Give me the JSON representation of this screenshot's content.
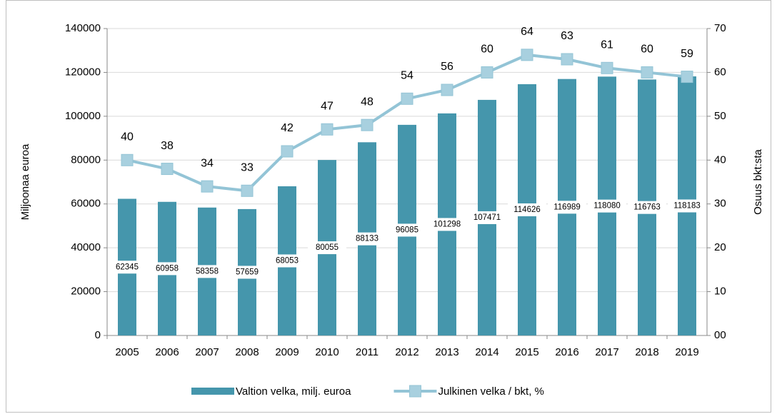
{
  "chart_data": {
    "type": "bar",
    "categories": [
      "2005",
      "2006",
      "2007",
      "2008",
      "2009",
      "2010",
      "2011",
      "2012",
      "2013",
      "2014",
      "2015",
      "2016",
      "2017",
      "2018",
      "2019"
    ],
    "series": [
      {
        "name": "Valtion velka, milj. euroa",
        "type": "bar",
        "axis": "y",
        "color": "#4596ac",
        "values": [
          62345,
          60958,
          58358,
          57659,
          68053,
          80055,
          88133,
          96085,
          101298,
          107471,
          114626,
          116989,
          118080,
          116763,
          118183
        ]
      },
      {
        "name": "Julkinen velka / bkt, %",
        "type": "line",
        "axis": "y2",
        "color": "#93c4d6",
        "values": [
          40,
          38,
          34,
          33,
          42,
          47,
          48,
          54,
          56,
          60,
          64,
          63,
          61,
          60,
          59
        ]
      }
    ],
    "ylabel": "Miljoonaa euroa",
    "y2label": "Osuus bkt:sta",
    "ylim": [
      0,
      140000
    ],
    "yticks": [
      0,
      20000,
      40000,
      60000,
      80000,
      100000,
      120000,
      140000
    ],
    "y2lim": [
      0,
      70
    ],
    "y2ticks": [
      {
        "value": 0,
        "label": "00"
      },
      10,
      20,
      30,
      40,
      50,
      60,
      70
    ],
    "grid": true,
    "legend": "bottom"
  }
}
